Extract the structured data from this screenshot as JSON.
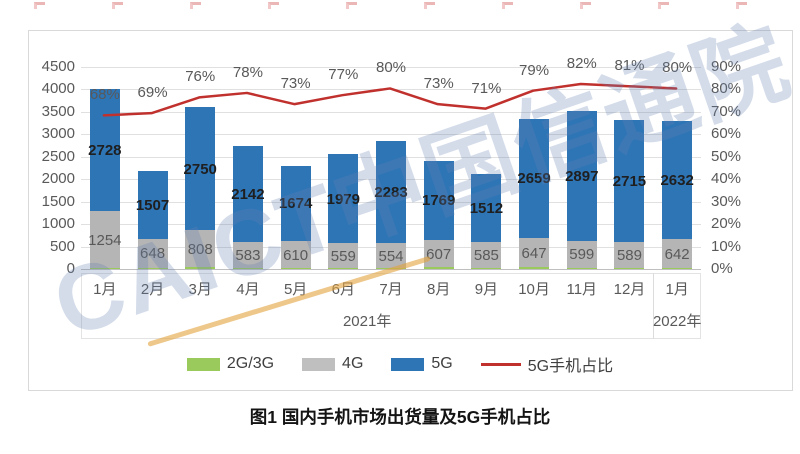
{
  "figure_caption": "图1  国内手机市场出货量及5G手机占比",
  "watermark": {
    "text": "CAICT中国信通院"
  },
  "legend": {
    "items": [
      {
        "label": "2G/3G",
        "color": "#9bca5c",
        "shape": "swatch"
      },
      {
        "label": "4G",
        "color": "#bfbfbf",
        "shape": "swatch"
      },
      {
        "label": "5G",
        "color": "#2e75b6",
        "shape": "swatch"
      },
      {
        "label": "5G手机占比",
        "color": "#c0312e",
        "shape": "line"
      }
    ]
  },
  "chart_data": {
    "type": "bar",
    "subtype": "stacked-columns-with-percentage-line",
    "title": "图1 国内手机市场出货量及5G手机占比",
    "categories": [
      "1月",
      "2月",
      "3月",
      "4月",
      "5月",
      "6月",
      "7月",
      "8月",
      "9月",
      "10月",
      "11月",
      "12月",
      "1月"
    ],
    "category_groups": [
      {
        "label": "2021年",
        "count": 12
      },
      {
        "label": "2022年",
        "count": 1
      }
    ],
    "series": [
      {
        "name": "2G/3G",
        "color": "#9bca5c",
        "labels_shown": false,
        "values_estimated": true,
        "values": [
          30,
          25,
          50,
          20,
          15,
          15,
          15,
          35,
          20,
          40,
          25,
          20,
          20
        ]
      },
      {
        "name": "4G",
        "color": "#b5b5b5",
        "labels_shown": true,
        "values": [
          1254,
          648,
          808,
          583,
          610,
          559,
          554,
          607,
          585,
          647,
          599,
          589,
          642
        ]
      },
      {
        "name": "5G",
        "color": "#2e75b6",
        "labels_shown": true,
        "values": [
          2728,
          1507,
          2750,
          2142,
          1674,
          1979,
          2283,
          1769,
          1512,
          2659,
          2897,
          2715,
          2632
        ]
      }
    ],
    "line": {
      "name": "5G手机占比",
      "color": "#c0312e",
      "axis": "right",
      "values_pct": [
        68,
        69,
        76,
        78,
        73,
        77,
        80,
        73,
        71,
        79,
        82,
        81,
        80
      ]
    },
    "left_axis": {
      "min": 0,
      "max": 4500,
      "step": 500
    },
    "right_axis": {
      "min": 0,
      "max": 90,
      "step": 10,
      "suffix": "%"
    },
    "grid": true,
    "legend_position": "bottom"
  }
}
